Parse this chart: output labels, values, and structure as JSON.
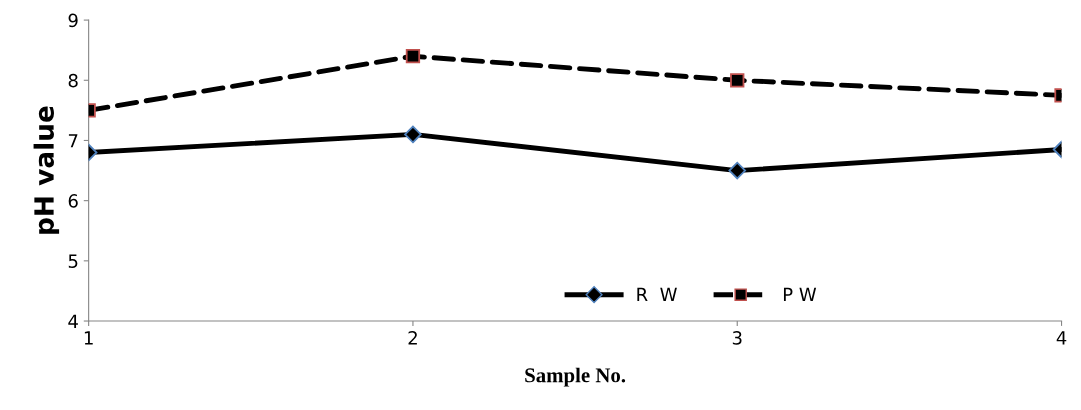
{
  "chart_data": {
    "type": "line",
    "xlabel": "Sample No.",
    "ylabel": "pH value",
    "x": [
      1,
      2,
      3,
      4
    ],
    "series": [
      {
        "name": "R  W",
        "color": "#000000",
        "marker": "diamond",
        "line_style": "solid",
        "values": [
          6.8,
          7.1,
          6.5,
          6.85
        ]
      },
      {
        "name": "P W",
        "color": "#000000",
        "marker": "square",
        "line_style": "dashed",
        "values": [
          7.5,
          8.4,
          8.0,
          7.75
        ]
      }
    ],
    "xlim": [
      1,
      4
    ],
    "xticks": [
      1,
      2,
      3,
      4
    ],
    "ylim": [
      4,
      9
    ],
    "yticks": [
      4,
      5,
      6,
      7,
      8,
      9
    ],
    "grid": false,
    "legend": "bottom"
  }
}
